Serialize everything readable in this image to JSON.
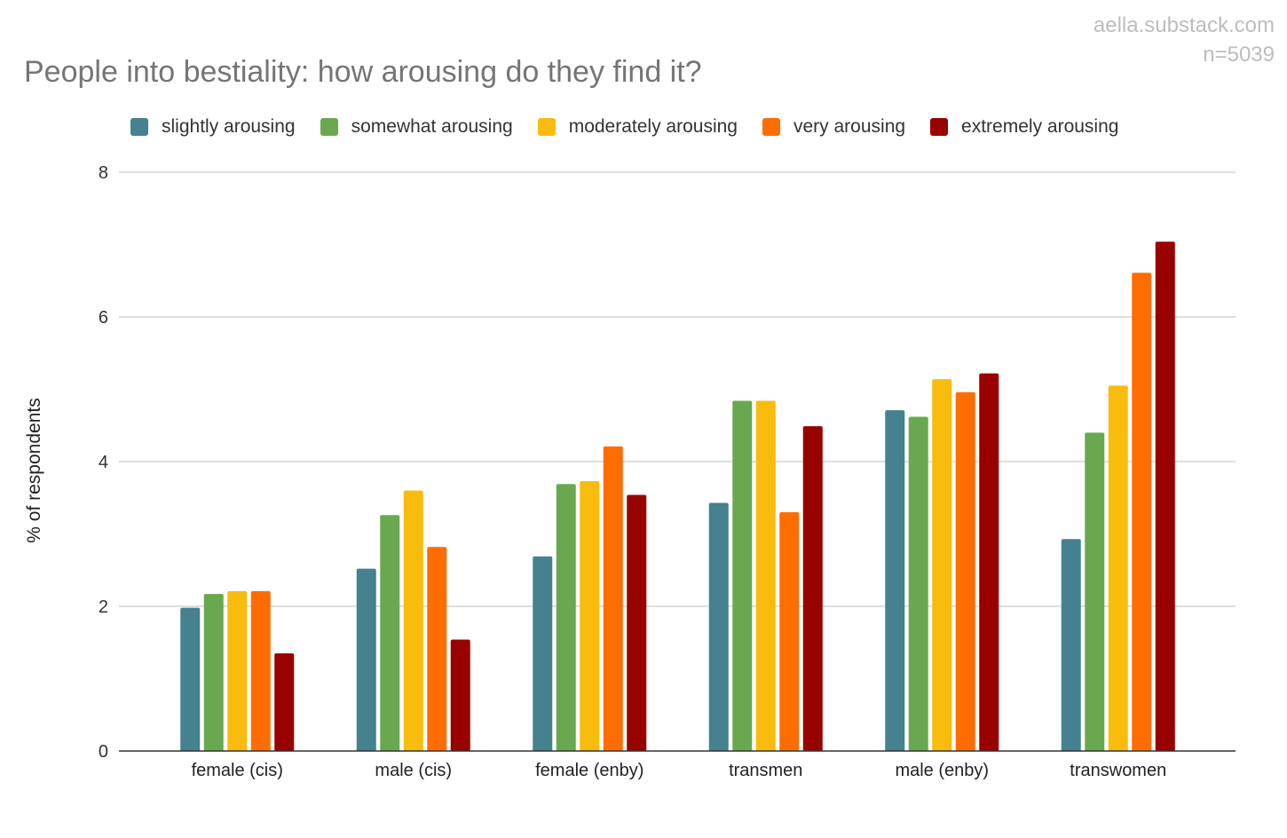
{
  "watermark": {
    "site": "aella.substack.com",
    "sample": "n=5039"
  },
  "chart_data": {
    "type": "bar",
    "title": "People into bestiality: how arousing do they find it?",
    "xlabel": "",
    "ylabel": "% of respondents",
    "ylim": [
      0,
      8
    ],
    "yticks": [
      0,
      2,
      4,
      6,
      8
    ],
    "grid": true,
    "legend_position": "top",
    "categories": [
      "female (cis)",
      "male (cis)",
      "female (enby)",
      "transmen",
      "male (enby)",
      "transwomen"
    ],
    "series": [
      {
        "name": "slightly arousing",
        "color": "#45818e",
        "values": [
          1.98,
          2.52,
          2.69,
          3.43,
          4.71,
          2.93
        ]
      },
      {
        "name": "somewhat arousing",
        "color": "#6aa84f",
        "values": [
          2.17,
          3.26,
          3.69,
          4.84,
          4.62,
          4.4
        ]
      },
      {
        "name": "moderately arousing",
        "color": "#f9bc0c",
        "values": [
          2.21,
          3.6,
          3.73,
          4.84,
          5.14,
          5.05
        ]
      },
      {
        "name": "very arousing",
        "color": "#ff6d01",
        "values": [
          2.21,
          2.82,
          4.21,
          3.3,
          4.96,
          6.61
        ]
      },
      {
        "name": "extremely arousing",
        "color": "#990000",
        "values": [
          1.35,
          1.54,
          3.54,
          4.49,
          5.22,
          7.04
        ]
      }
    ]
  }
}
